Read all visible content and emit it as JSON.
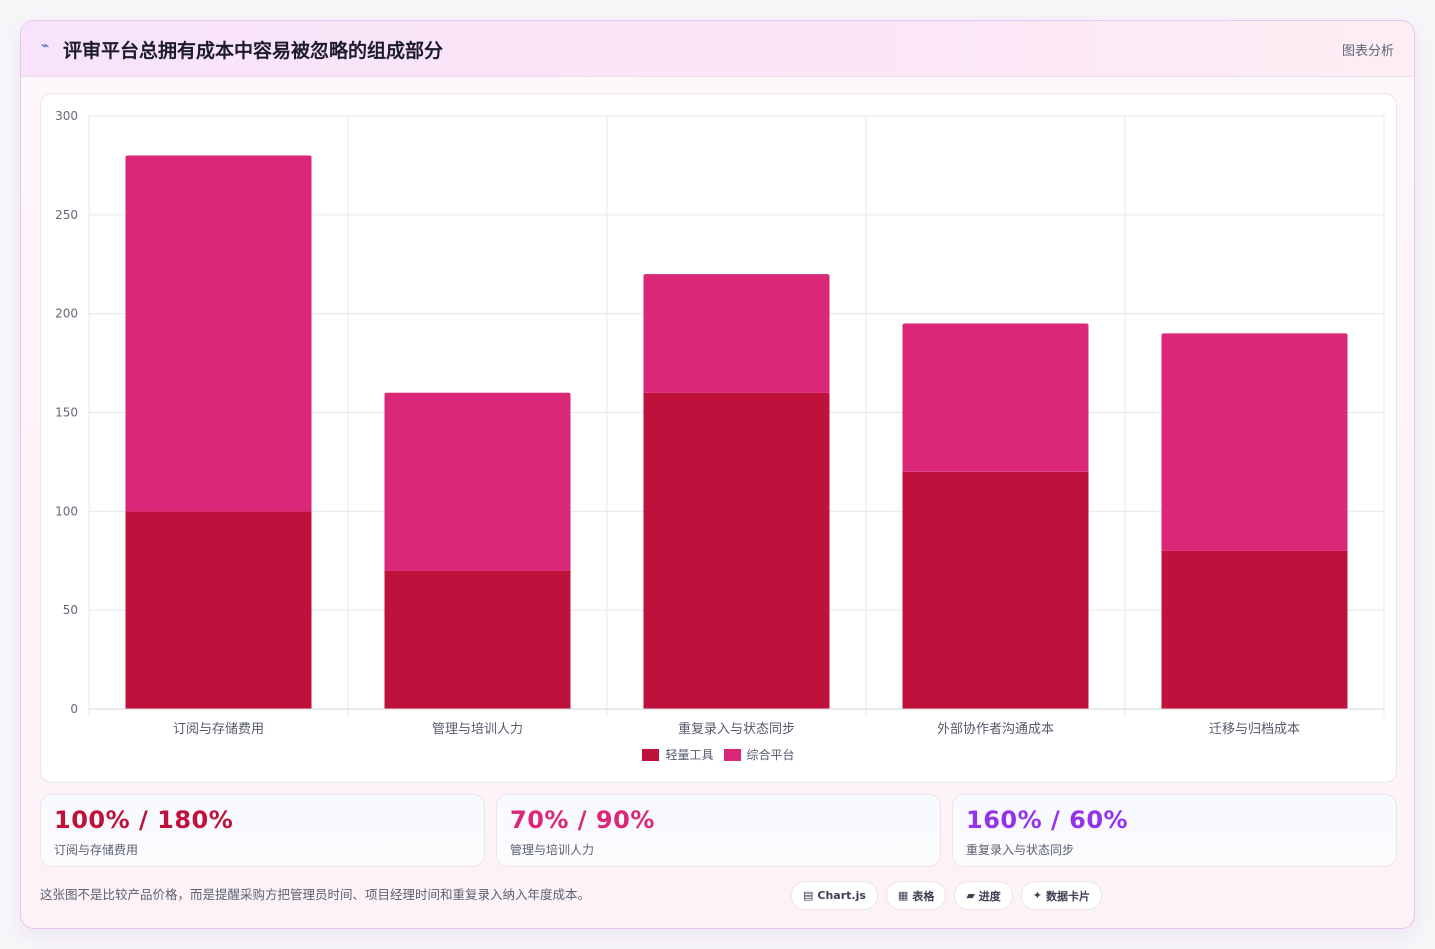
{
  "header": {
    "icon": "trend-icon",
    "title": "评审平台总拥有成本中容易被忽略的组成部分",
    "tag": "图表分析"
  },
  "chart_data": {
    "type": "bar",
    "stacked": true,
    "categories": [
      "订阅与存储费用",
      "管理与培训人力",
      "重复录入与状态同步",
      "外部协作者沟通成本",
      "迁移与归档成本"
    ],
    "series": [
      {
        "name": "轻量工具",
        "values": [
          100,
          70,
          160,
          120,
          80
        ],
        "color": "#be123c"
      },
      {
        "name": "综合平台",
        "values": [
          180,
          90,
          60,
          75,
          110
        ],
        "color": "#db2777"
      }
    ],
    "ylim": [
      0,
      300
    ],
    "yticks": [
      0,
      50,
      100,
      150,
      200,
      250,
      300
    ],
    "grid": true,
    "legend": "bottom"
  },
  "stats": [
    {
      "value": "100% / 180%",
      "label": "订阅与存储费用",
      "color": "#be123c"
    },
    {
      "value": "70% / 90%",
      "label": "管理与培训人力",
      "color": "#db2777"
    },
    {
      "value": "160% / 60%",
      "label": "重复录入与状态同步",
      "color": "#9333ea"
    }
  ],
  "footnote": "这张图不是比较产品价格，而是提醒采购方把管理员时间、项目经理时间和重复录入纳入年度成本。",
  "badges": [
    {
      "icon": "▤",
      "label": "Chart.js"
    },
    {
      "icon": "▦",
      "label": "表格"
    },
    {
      "icon": "▰",
      "label": "进度"
    },
    {
      "icon": "✦",
      "label": "数据卡片"
    }
  ]
}
